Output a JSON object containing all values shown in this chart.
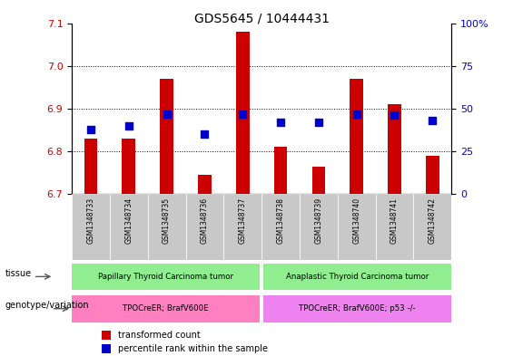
{
  "title": "GDS5645 / 10444431",
  "samples": [
    "GSM1348733",
    "GSM1348734",
    "GSM1348735",
    "GSM1348736",
    "GSM1348737",
    "GSM1348738",
    "GSM1348739",
    "GSM1348740",
    "GSM1348741",
    "GSM1348742"
  ],
  "transformed_count": [
    6.83,
    6.83,
    6.97,
    6.745,
    7.08,
    6.81,
    6.765,
    6.97,
    6.91,
    6.79
  ],
  "percentile_rank": [
    38,
    40,
    47,
    35,
    47,
    42,
    42,
    47,
    46,
    43
  ],
  "ylim_left": [
    6.7,
    7.1
  ],
  "ylim_right": [
    0,
    100
  ],
  "yticks_left": [
    6.7,
    6.8,
    6.9,
    7.0,
    7.1
  ],
  "yticks_right": [
    0,
    25,
    50,
    75,
    100
  ],
  "tissue_groups": [
    {
      "label": "Papillary Thyroid Carcinoma tumor",
      "start": 0,
      "end": 5,
      "color": "#90EE90"
    },
    {
      "label": "Anaplastic Thyroid Carcinoma tumor",
      "start": 5,
      "end": 10,
      "color": "#90EE90"
    }
  ],
  "genotype_groups": [
    {
      "label": "TPOCreER; BrafV600E",
      "start": 0,
      "end": 5,
      "color": "#FF80C0"
    },
    {
      "label": "TPOCreER; BrafV600E; p53 -/-",
      "start": 5,
      "end": 10,
      "color": "#EE82EE"
    }
  ],
  "bar_color": "#CC0000",
  "dot_color": "#0000CC",
  "base_value": 6.7,
  "tissue_label": "tissue",
  "genotype_label": "genotype/variation",
  "legend_red": "transformed count",
  "legend_blue": "percentile rank within the sample",
  "bar_width": 0.35,
  "dot_size": 30,
  "background_color": "#ffffff",
  "plot_bg_color": "#ffffff",
  "tick_label_color_left": "#CC0000",
  "tick_label_color_right": "#0000CC",
  "grid_color": "#000000",
  "xtick_bg_color": "#C8C8C8"
}
